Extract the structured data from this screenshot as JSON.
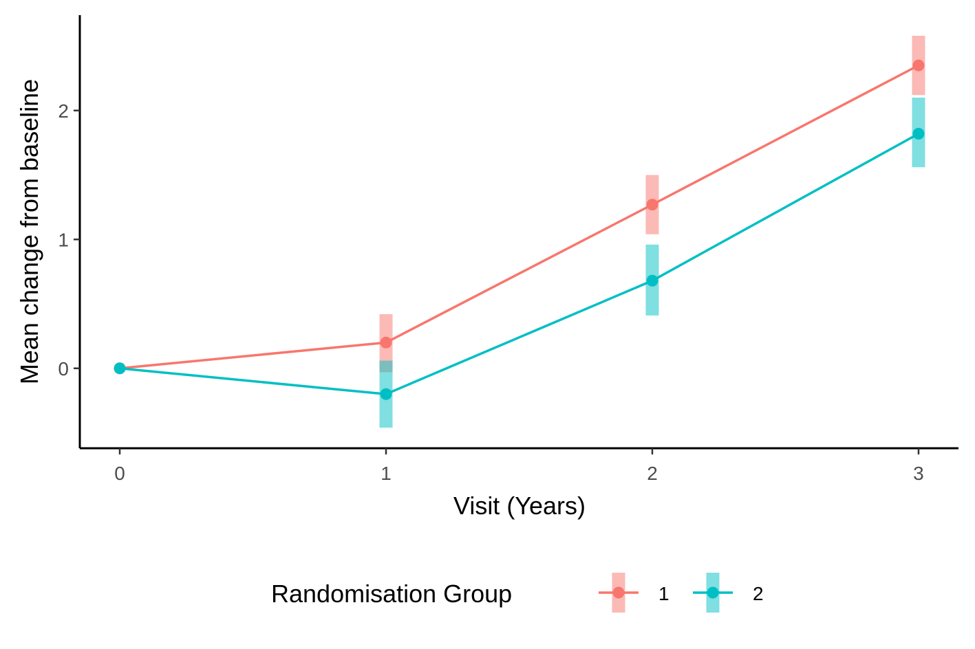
{
  "chart_data": {
    "type": "line",
    "xlabel": "Visit (Years)",
    "ylabel": "Mean change from baseline",
    "x": [
      0,
      1,
      2,
      3
    ],
    "x_ticks": [
      "0",
      "1",
      "2",
      "3"
    ],
    "y_ticks": [
      "0",
      "1",
      "2"
    ],
    "xlim": [
      -0.15,
      3.15
    ],
    "ylim": [
      -0.62,
      2.74
    ],
    "grid": false,
    "legend": {
      "title": "Randomisation Group",
      "position": "bottom"
    },
    "series": [
      {
        "name": "1",
        "color": "#F8766D",
        "values": [
          0,
          0.2,
          1.27,
          2.35
        ],
        "lower": [
          null,
          -0.03,
          1.04,
          2.12
        ],
        "upper": [
          null,
          0.42,
          1.5,
          2.58
        ]
      },
      {
        "name": "2",
        "color": "#00BFC4",
        "values": [
          0,
          -0.2,
          0.68,
          1.82
        ],
        "lower": [
          null,
          -0.46,
          0.41,
          1.56
        ],
        "upper": [
          null,
          0.06,
          0.96,
          2.1
        ]
      }
    ]
  }
}
